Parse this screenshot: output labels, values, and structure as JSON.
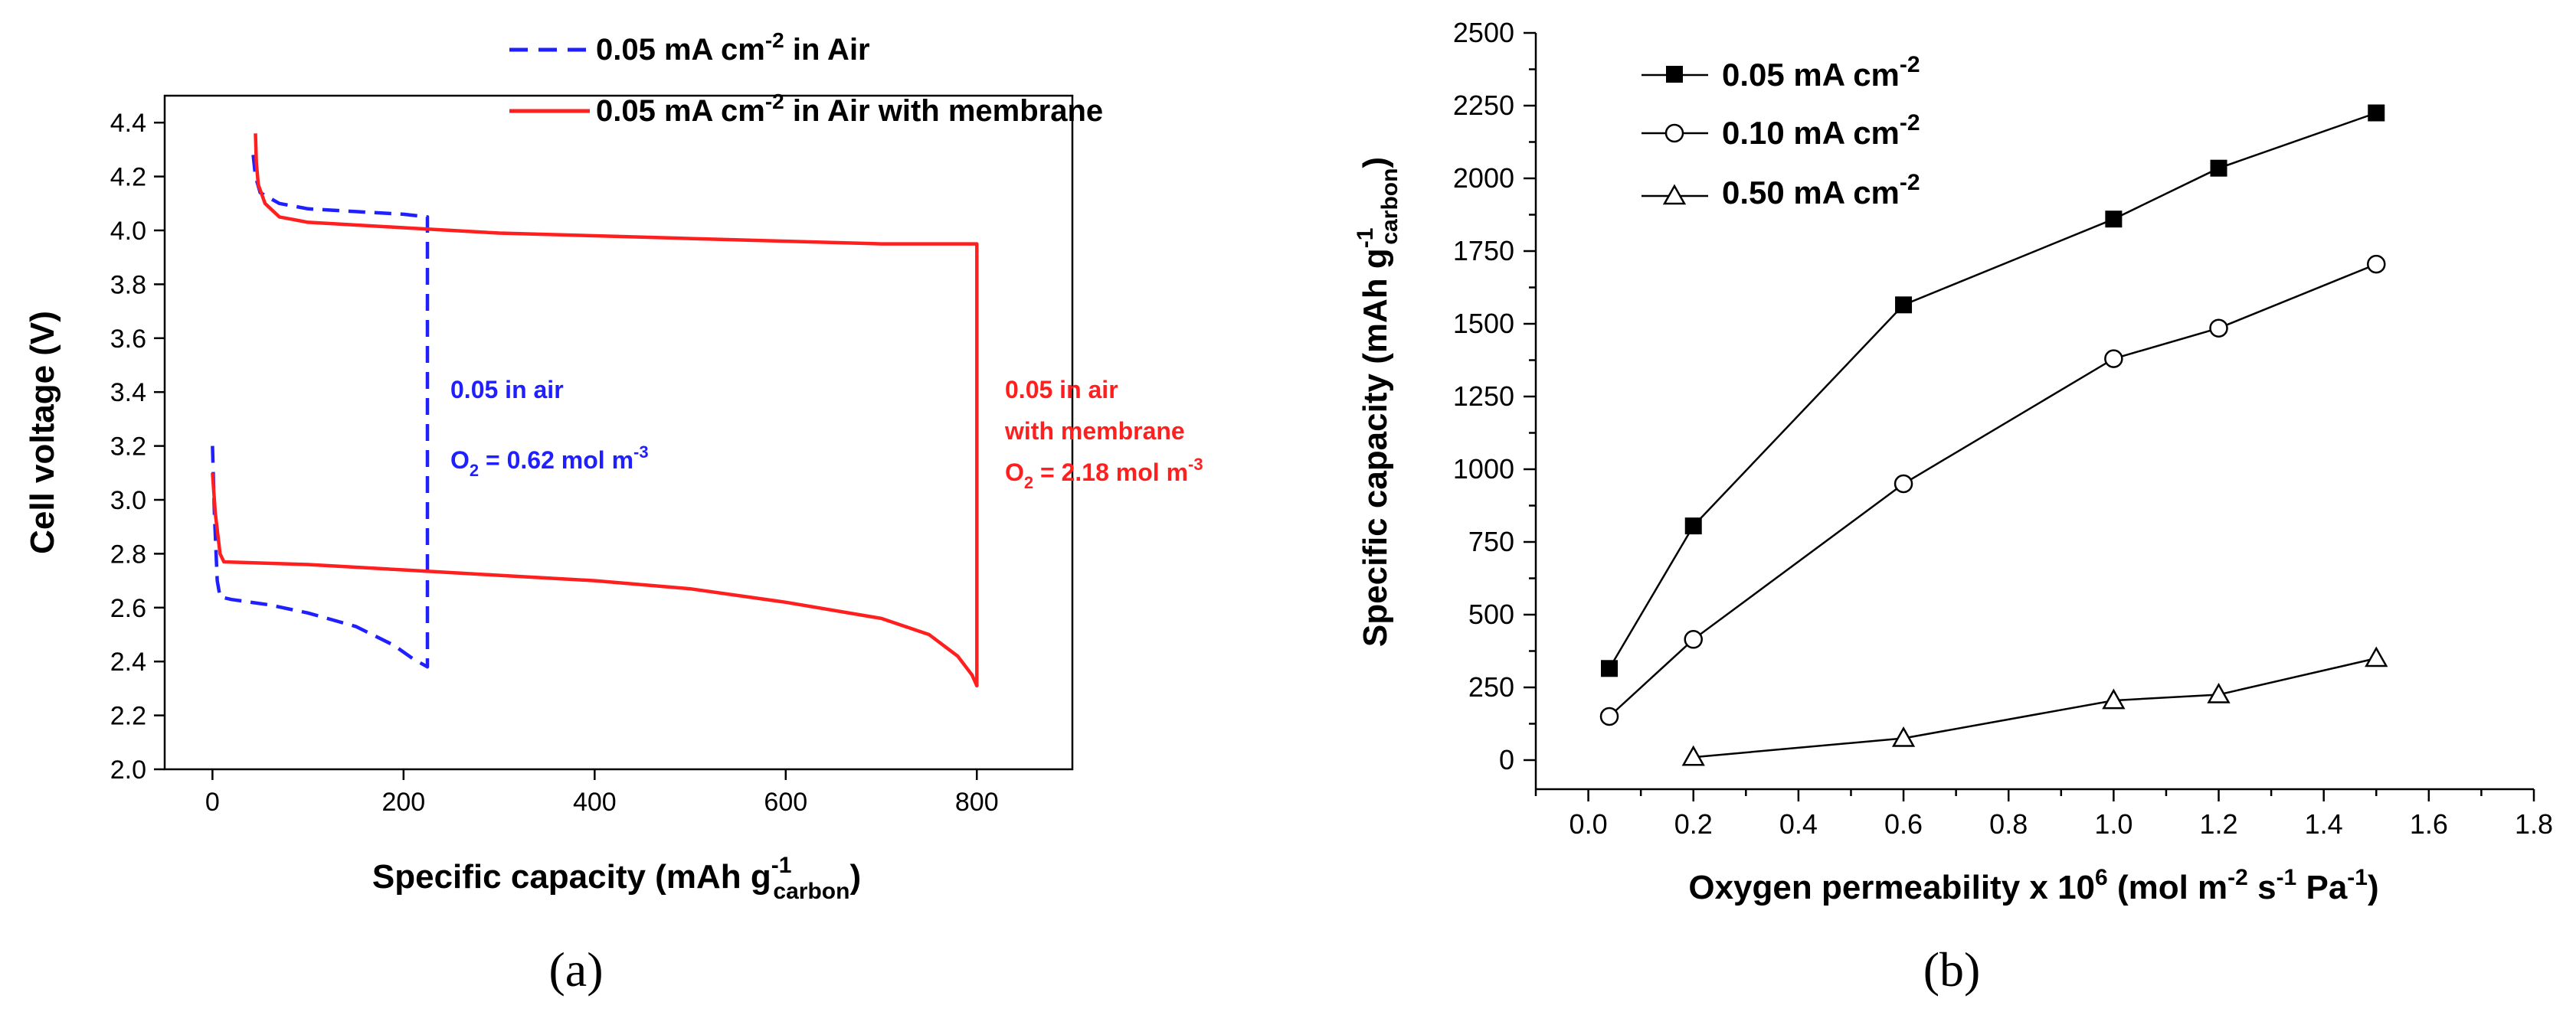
{
  "chart_data": [
    {
      "type": "line",
      "panel_label": "(a)",
      "title": "",
      "xlabel": "Specific capacity (mAh g",
      "xlabel_sup": "-1",
      "xlabel_sub": "carbon",
      "xlabel_close": ")",
      "ylabel": "Cell voltage (V)",
      "xlim": [
        -50,
        900
      ],
      "ylim": [
        2.0,
        4.5
      ],
      "xticks": [
        0,
        200,
        400,
        600,
        800
      ],
      "yticks": [
        2.0,
        2.2,
        2.4,
        2.6,
        2.8,
        3.0,
        3.2,
        3.4,
        3.6,
        3.8,
        4.0,
        4.2,
        4.4
      ],
      "legend_position": "top-center",
      "series": [
        {
          "name": "0.05  mA cm-2 in Air",
          "legend_main": "0.05  mA cm",
          "legend_sup": "-2",
          "legend_tail": " in Air",
          "color": "#1f1fff",
          "style": "dashed",
          "discharge": [
            [
              0,
              3.2
            ],
            [
              2,
              2.95
            ],
            [
              5,
              2.7
            ],
            [
              8,
              2.64
            ],
            [
              20,
              2.63
            ],
            [
              60,
              2.61
            ],
            [
              100,
              2.58
            ],
            [
              150,
              2.53
            ],
            [
              190,
              2.46
            ],
            [
              210,
              2.41
            ],
            [
              225,
              2.38
            ]
          ],
          "vertical_jump": [
            225,
            2.38,
            4.05
          ],
          "charge": [
            [
              225,
              4.05
            ],
            [
              200,
              4.06
            ],
            [
              150,
              4.07
            ],
            [
              100,
              4.08
            ],
            [
              70,
              4.1
            ],
            [
              50,
              4.14
            ],
            [
              45,
              4.2
            ],
            [
              42,
              4.3
            ]
          ]
        },
        {
          "name": "0.05  mA cm-2 in Air with membrane",
          "legend_main": "0.05  mA cm",
          "legend_sup": "-2",
          "legend_tail": " in Air with membrane",
          "color": "#ff1f1f",
          "style": "solid",
          "discharge": [
            [
              0,
              3.1
            ],
            [
              3,
              2.95
            ],
            [
              8,
              2.8
            ],
            [
              12,
              2.77
            ],
            [
              100,
              2.76
            ],
            [
              200,
              2.74
            ],
            [
              300,
              2.72
            ],
            [
              400,
              2.7
            ],
            [
              500,
              2.67
            ],
            [
              600,
              2.62
            ],
            [
              700,
              2.56
            ],
            [
              750,
              2.5
            ],
            [
              780,
              2.42
            ],
            [
              795,
              2.35
            ],
            [
              800,
              2.31
            ]
          ],
          "vertical_jump": [
            800,
            2.31,
            3.95
          ],
          "charge": [
            [
              800,
              3.95
            ],
            [
              700,
              3.95
            ],
            [
              600,
              3.96
            ],
            [
              500,
              3.97
            ],
            [
              400,
              3.98
            ],
            [
              300,
              3.99
            ],
            [
              200,
              4.01
            ],
            [
              100,
              4.03
            ],
            [
              70,
              4.05
            ],
            [
              55,
              4.1
            ],
            [
              48,
              4.17
            ],
            [
              46,
              4.25
            ],
            [
              45,
              4.36
            ]
          ]
        }
      ],
      "annotations": [
        {
          "color": "#1f1fff",
          "line1": "0.05 in air",
          "line2_main": "O",
          "line2_sub": "2",
          "line2_text": " = 0.62 mol m",
          "line2_sup": "-3"
        },
        {
          "color": "#ff1f1f",
          "line1": "0.05 in air",
          "line1b": "with membrane",
          "line2_main": "O",
          "line2_sub": "2",
          "line2_text": " = 2.18 mol m",
          "line2_sup": "-3"
        }
      ]
    },
    {
      "type": "line",
      "panel_label": "(b)",
      "title": "",
      "xlabel": "Oxygen permeability x 10",
      "xlabel_sup1": "6",
      "xlabel_mid1": " (mol m",
      "xlabel_sup2": "-2",
      "xlabel_mid2": " s",
      "xlabel_sup3": "-1",
      "xlabel_mid3": " Pa",
      "xlabel_sup4": "-1",
      "xlabel_close": ")",
      "ylabel": "Specific capacity (mAh g",
      "ylabel_sup": "-1",
      "ylabel_sub": "carbon",
      "ylabel_close": ")",
      "xlim": [
        -0.1,
        1.8
      ],
      "ylim": [
        -100,
        2500
      ],
      "xticks": [
        0.0,
        0.2,
        0.4,
        0.6,
        0.8,
        1.0,
        1.2,
        1.4,
        1.6,
        1.8
      ],
      "xtick_labels": [
        "0.0",
        "0.2",
        "0.4",
        "0.6",
        "0.8",
        "1.0",
        "1.2",
        "1.4",
        "1.6",
        "1.8"
      ],
      "yticks": [
        0,
        250,
        500,
        750,
        1000,
        1250,
        1500,
        1750,
        2000,
        2250,
        2500
      ],
      "legend_position": "top-left",
      "series": [
        {
          "name": "0.05 mA cm-2",
          "legend_main": "0.05 mA cm",
          "legend_sup": "-2",
          "marker": "filled-square",
          "x": [
            0.04,
            0.2,
            0.6,
            1.0,
            1.2,
            1.5
          ],
          "y": [
            315,
            805,
            1565,
            1860,
            2035,
            2225
          ]
        },
        {
          "name": "0.10 mA cm-2",
          "legend_main": "0.10 mA cm",
          "legend_sup": "-2",
          "marker": "open-circle",
          "x": [
            0.04,
            0.2,
            0.6,
            1.0,
            1.2,
            1.5
          ],
          "y": [
            150,
            415,
            950,
            1380,
            1485,
            1705
          ]
        },
        {
          "name": "0.50 mA cm-2",
          "legend_main": "0.50 mA cm",
          "legend_sup": "-2",
          "marker": "open-triangle",
          "x": [
            0.2,
            0.6,
            1.0,
            1.2,
            1.5
          ],
          "y": [
            10,
            75,
            205,
            225,
            350
          ]
        }
      ]
    }
  ]
}
